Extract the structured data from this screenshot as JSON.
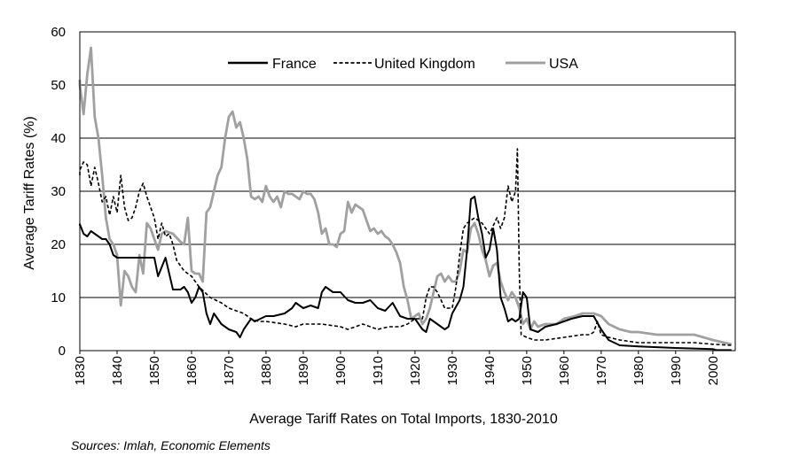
{
  "chart_data": {
    "type": "line",
    "title": "",
    "xlabel": "Average Tariff Rates on Total Imports, 1830-2010",
    "ylabel": "Average Tariff Rates (%)",
    "source": "Sources: Imlah, Economic Elements",
    "xlim": [
      1830,
      2006
    ],
    "ylim": [
      0,
      60
    ],
    "yticks": [
      0,
      10,
      20,
      30,
      40,
      50,
      60
    ],
    "xticks": [
      1830,
      1840,
      1850,
      1860,
      1870,
      1880,
      1890,
      1900,
      1910,
      1920,
      1930,
      1940,
      1950,
      1960,
      1970,
      1980,
      1990,
      2000
    ],
    "grid": true,
    "legend_position": "top-center",
    "series": [
      {
        "name": "France",
        "color": "#000000",
        "style": "solid",
        "x": [
          1829,
          1830,
          1831,
          1832,
          1833,
          1834,
          1835,
          1836,
          1837,
          1838,
          1839,
          1840,
          1842,
          1845,
          1848,
          1850,
          1851,
          1853,
          1855,
          1857,
          1858,
          1859,
          1860,
          1861,
          1862,
          1863,
          1864,
          1865,
          1866,
          1868,
          1870,
          1872,
          1873,
          1874,
          1876,
          1877,
          1880,
          1882,
          1885,
          1887,
          1888,
          1890,
          1892,
          1894,
          1895,
          1896,
          1898,
          1900,
          1902,
          1904,
          1906,
          1908,
          1910,
          1912,
          1914,
          1916,
          1918,
          1920,
          1922,
          1923,
          1924,
          1926,
          1928,
          1929,
          1930,
          1932,
          1933,
          1934,
          1935,
          1936,
          1937,
          1938,
          1939,
          1940,
          1941,
          1942,
          1943,
          1944,
          1945,
          1946,
          1947,
          1948,
          1949,
          1950,
          1951,
          1953,
          1955,
          1958,
          1962,
          1965,
          1968,
          1970,
          1972,
          1975,
          1980,
          1990,
          2000,
          2001,
          2005
        ],
        "y": [
          23.5,
          23.8,
          22,
          21.5,
          22.5,
          22,
          21.5,
          21,
          21,
          20,
          18,
          17.5,
          17.5,
          17.5,
          17.5,
          17.5,
          14,
          17.5,
          11.5,
          11.5,
          12,
          11,
          9,
          10,
          12,
          11,
          7,
          5,
          7,
          5,
          4,
          3.5,
          2.5,
          4,
          6,
          5.5,
          6.5,
          6.5,
          7,
          8,
          9,
          8,
          8.5,
          8,
          11,
          12,
          11,
          11,
          9.5,
          9,
          9,
          9.5,
          8,
          7.5,
          9,
          6.5,
          6,
          6,
          4,
          3.5,
          6,
          5,
          4,
          4.5,
          7,
          9.5,
          12,
          19,
          28.5,
          29,
          25,
          22,
          17.5,
          19,
          23,
          19,
          10,
          8,
          5.5,
          6,
          5.5,
          6,
          11,
          10,
          4,
          3.5,
          4.5,
          5,
          6,
          6.5,
          6.5,
          4,
          2,
          1,
          0.8,
          0.5,
          0.3,
          0.1,
          0.1
        ]
      },
      {
        "name": "United Kingdom",
        "color": "#000000",
        "style": "dashed",
        "x": [
          1829,
          1830,
          1831,
          1832,
          1833,
          1834,
          1835,
          1836,
          1837,
          1838,
          1839,
          1840,
          1841,
          1842,
          1843,
          1844,
          1845,
          1846,
          1847,
          1848,
          1849,
          1850,
          1851,
          1852,
          1853,
          1854,
          1855,
          1856,
          1858,
          1860,
          1862,
          1865,
          1868,
          1870,
          1872,
          1874,
          1876,
          1878,
          1880,
          1885,
          1888,
          1890,
          1895,
          1900,
          1902,
          1904,
          1906,
          1910,
          1913,
          1916,
          1918,
          1920,
          1922,
          1923,
          1924,
          1925,
          1926,
          1928,
          1930,
          1931,
          1932,
          1933,
          1934,
          1936,
          1938,
          1940,
          1942,
          1943,
          1944,
          1945,
          1946,
          1947,
          1947.5,
          1948,
          1948.5,
          1950,
          1952,
          1955,
          1960,
          1965,
          1967,
          1968,
          1969,
          1970,
          1972,
          1975,
          1980,
          1985,
          1990,
          1995,
          2000,
          2005
        ],
        "y": [
          33,
          34,
          35.5,
          35,
          31,
          34.5,
          31.5,
          28,
          29,
          25.5,
          29,
          26,
          33,
          27,
          24.5,
          25,
          27,
          30,
          31.5,
          29,
          27,
          25,
          21,
          24,
          21.5,
          22,
          20,
          17,
          15,
          14,
          12,
          10,
          9,
          8,
          7.5,
          7,
          6,
          5.5,
          5.5,
          5,
          4.5,
          5,
          5,
          4.5,
          4,
          4.5,
          5,
          4,
          4.5,
          4.5,
          5,
          6,
          6,
          10,
          12,
          12,
          11,
          8,
          8,
          12,
          18,
          23,
          24,
          25,
          24,
          22,
          25,
          23,
          25,
          31,
          28,
          30,
          38,
          15,
          3,
          2.5,
          2,
          2,
          2.5,
          3,
          3,
          3.5,
          5.5,
          3,
          2.5,
          2,
          1.5,
          1.5,
          1.5,
          1.5,
          1.2,
          1
        ]
      },
      {
        "name": "USA",
        "color": "#a0a0a0",
        "style": "solid",
        "x": [
          1829,
          1830,
          1831,
          1832,
          1833,
          1834,
          1835,
          1836,
          1837,
          1838,
          1839,
          1840,
          1841,
          1842,
          1843,
          1844,
          1845,
          1846,
          1847,
          1848,
          1849,
          1850,
          1851,
          1852,
          1853,
          1855,
          1857,
          1858,
          1859,
          1860,
          1861,
          1862,
          1863,
          1864,
          1865,
          1866,
          1867,
          1868,
          1869,
          1870,
          1871,
          1872,
          1873,
          1874,
          1875,
          1876,
          1877,
          1878,
          1879,
          1880,
          1881,
          1882,
          1883,
          1884,
          1885,
          1886,
          1887,
          1888,
          1889,
          1890,
          1891,
          1892,
          1893,
          1894,
          1895,
          1896,
          1897,
          1898,
          1899,
          1900,
          1901,
          1902,
          1903,
          1904,
          1905,
          1906,
          1907,
          1908,
          1909,
          1910,
          1911,
          1912,
          1913,
          1914,
          1915,
          1916,
          1917,
          1918,
          1919,
          1920,
          1921,
          1922,
          1923,
          1924,
          1925,
          1926,
          1927,
          1928,
          1929,
          1930,
          1931,
          1932,
          1933,
          1934,
          1935,
          1936,
          1937,
          1938,
          1939,
          1940,
          1941,
          1942,
          1943,
          1944,
          1945,
          1946,
          1947,
          1948,
          1949,
          1950,
          1951,
          1952,
          1953,
          1955,
          1958,
          1960,
          1963,
          1965,
          1968,
          1970,
          1972,
          1975,
          1978,
          1980,
          1985,
          1990,
          1995,
          2000,
          2003,
          2005
        ],
        "y": [
          51,
          50,
          44.5,
          52,
          57,
          44,
          40,
          33,
          25,
          21,
          20,
          18,
          8.5,
          15,
          14,
          12,
          11,
          18,
          14.5,
          24,
          23,
          21,
          19,
          22,
          22.5,
          22,
          20.5,
          20,
          25,
          15,
          14.5,
          14.5,
          13,
          26,
          27,
          30,
          33,
          34.5,
          40,
          44,
          45,
          42,
          43,
          40,
          36,
          29,
          28.5,
          29,
          28,
          31,
          29,
          28,
          29,
          27,
          30,
          29.5,
          29.5,
          29,
          28.5,
          30,
          29.5,
          29.5,
          28.5,
          26,
          22,
          23,
          20,
          20,
          19.5,
          22,
          22.5,
          28,
          26,
          27.5,
          27,
          26.5,
          24.5,
          22.5,
          23,
          22,
          22.5,
          21.5,
          21,
          20,
          18.5,
          16.5,
          12,
          9.5,
          6,
          6.5,
          7,
          5,
          6,
          8,
          11,
          14,
          14.5,
          13,
          14,
          13,
          13,
          15,
          19,
          18.5,
          23,
          24,
          22,
          19,
          17,
          14,
          16,
          16.5,
          13,
          11,
          9.5,
          11,
          10,
          8,
          5,
          6,
          4,
          5.5,
          4.5,
          5,
          5,
          6,
          6.5,
          7,
          7,
          6.5,
          5,
          4,
          3.5,
          3.5,
          3,
          3,
          3,
          2,
          1.5,
          1.2
        ]
      }
    ]
  }
}
